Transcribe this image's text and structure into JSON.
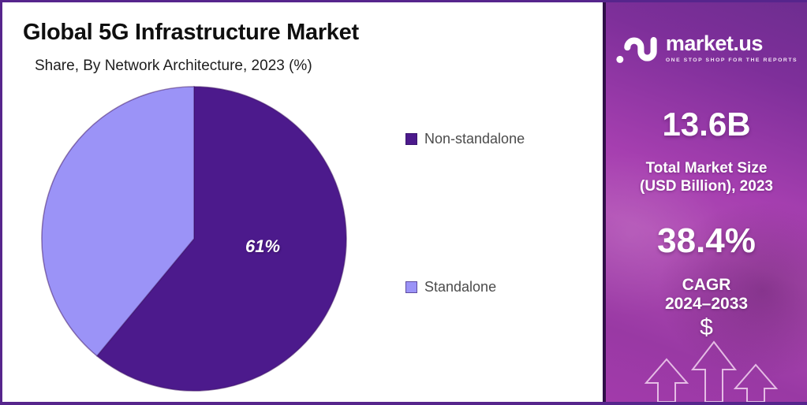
{
  "chart_data": {
    "type": "pie",
    "title": "Global 5G Infrastructure Market",
    "subtitle": "Share, By Network Architecture, 2023 (%)",
    "unit": "%",
    "start_angle_deg": 0,
    "direction": "clockwise",
    "legend_position": "right",
    "slices": [
      {
        "label": "Non-standalone",
        "value": 61,
        "color": "#4c1a8c",
        "data_label": "61%"
      },
      {
        "label": "Standalone",
        "value": 39,
        "color": "#9b93f7",
        "data_label": ""
      }
    ]
  },
  "sidebar": {
    "logo": {
      "icon": "marketus-logo-icon",
      "brand": "market.us",
      "tagline": "ONE STOP SHOP FOR THE REPORTS"
    },
    "market_size": {
      "value": "13.6B",
      "label_line1": "Total Market Size",
      "label_line2": "(USD Billion), 2023"
    },
    "cagr": {
      "value": "38.4%",
      "label_line1": "CAGR",
      "label_line2": "2024–2033"
    },
    "dollar_symbol": "$",
    "decoration_icons": [
      "up-arrow",
      "up-arrow",
      "up-arrow"
    ]
  },
  "colors": {
    "slice_dark": "#4c1a8c",
    "slice_light": "#9b93f7",
    "pie_stroke": "#3a1060",
    "frame_border": "#56258c",
    "sidebar_divider": "#2f0e47",
    "sidebar_magenta": "#a63fb0",
    "text_dark": "#0f0f0f",
    "legend_text": "#4b4b4b",
    "sidebar_text": "#ffffff"
  }
}
